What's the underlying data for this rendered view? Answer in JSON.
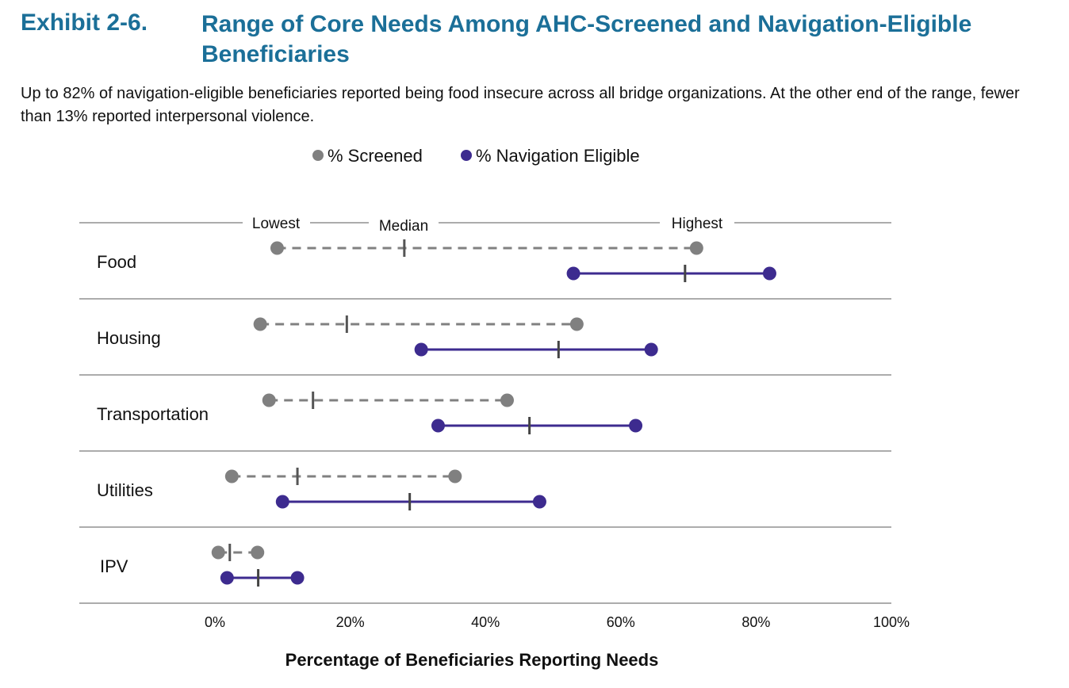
{
  "header": {
    "exhibit_label": "Exhibit 2-6.",
    "title": "Range of Core Needs Among AHC-Screened and Navigation-Eligible Beneficiaries",
    "subtitle": "Up to 82% of navigation-eligible beneficiaries reported being food insecure across all bridge organizations. At the other end of the range, fewer than 13% reported interpersonal violence."
  },
  "chart_data": {
    "type": "range-dot",
    "categories": [
      "Food",
      "Housing",
      "Transportation",
      "Utilities",
      "IPV"
    ],
    "series": [
      {
        "name": "% Screened",
        "color": "#808080",
        "line_style": "dashed",
        "low": [
          9.2,
          6.7,
          8.0,
          2.5,
          0.5
        ],
        "median": [
          28.0,
          19.5,
          14.5,
          12.2,
          2.2
        ],
        "high": [
          71.2,
          53.5,
          43.2,
          35.5,
          6.3
        ]
      },
      {
        "name": "% Navigation Eligible",
        "color": "#3d2b8f",
        "line_style": "solid",
        "low": [
          53.0,
          30.5,
          33.0,
          10.0,
          1.8
        ],
        "median": [
          69.5,
          50.8,
          46.5,
          28.8,
          6.4
        ],
        "high": [
          82.0,
          64.5,
          62.2,
          48.0,
          12.2
        ]
      }
    ],
    "legend": {
      "position": "top"
    },
    "range_labels": {
      "low": "Lowest",
      "median": "Median",
      "high": "Highest"
    },
    "x_ticks": [
      "0%",
      "20%",
      "40%",
      "60%",
      "80%",
      "100%"
    ],
    "xlabel": "Percentage of Beneficiaries Reporting Needs",
    "xlim": [
      0,
      100
    ]
  }
}
